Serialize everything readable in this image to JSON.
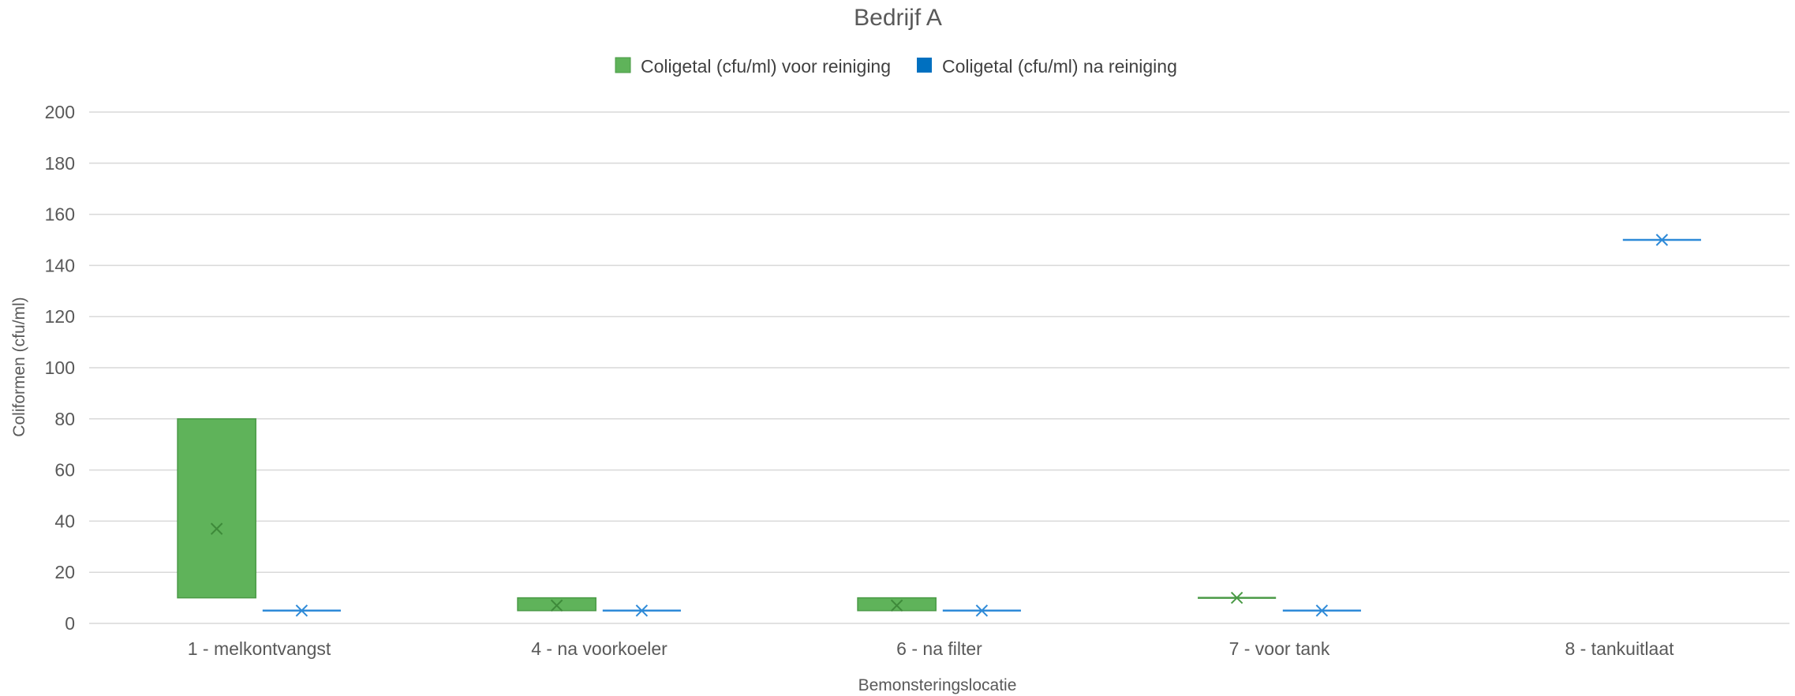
{
  "chart_data": {
    "type": "box",
    "title": "Bedrijf A",
    "xlabel": "Bemonsteringslocatie",
    "ylabel": "Coliformen (cfu/ml)",
    "ylim": [
      0,
      200
    ],
    "yticks": [
      0,
      20,
      40,
      60,
      80,
      100,
      120,
      140,
      160,
      180,
      200
    ],
    "grid": true,
    "legend_position": "top",
    "categories": [
      "1 - melkontvangst",
      "4 - na voorkoeler",
      "6 - na filter",
      "7 - voor tank",
      "8 - tankuitlaat"
    ],
    "series": [
      {
        "name": "Coligetal (cfu/ml) voor reiniging",
        "color": "#5fb35a",
        "stroke": "#4a9a46",
        "boxes": [
          {
            "low": 10,
            "high": 80,
            "mean": 37
          },
          {
            "low": 5,
            "high": 10,
            "mean": 7
          },
          {
            "low": 5,
            "high": 10,
            "mean": 7
          },
          {
            "low": 10,
            "high": 10,
            "mean": 10
          },
          null
        ]
      },
      {
        "name": "Coligetal (cfu/ml) na reiniging",
        "color": "#0070c0",
        "stroke": "#2e8ad8",
        "boxes": [
          {
            "low": 5,
            "high": 5,
            "mean": 5
          },
          {
            "low": 5,
            "high": 5,
            "mean": 5
          },
          {
            "low": 5,
            "high": 5,
            "mean": 5
          },
          {
            "low": 5,
            "high": 5,
            "mean": 5
          },
          {
            "low": 150,
            "high": 150,
            "mean": 150
          }
        ]
      }
    ]
  }
}
